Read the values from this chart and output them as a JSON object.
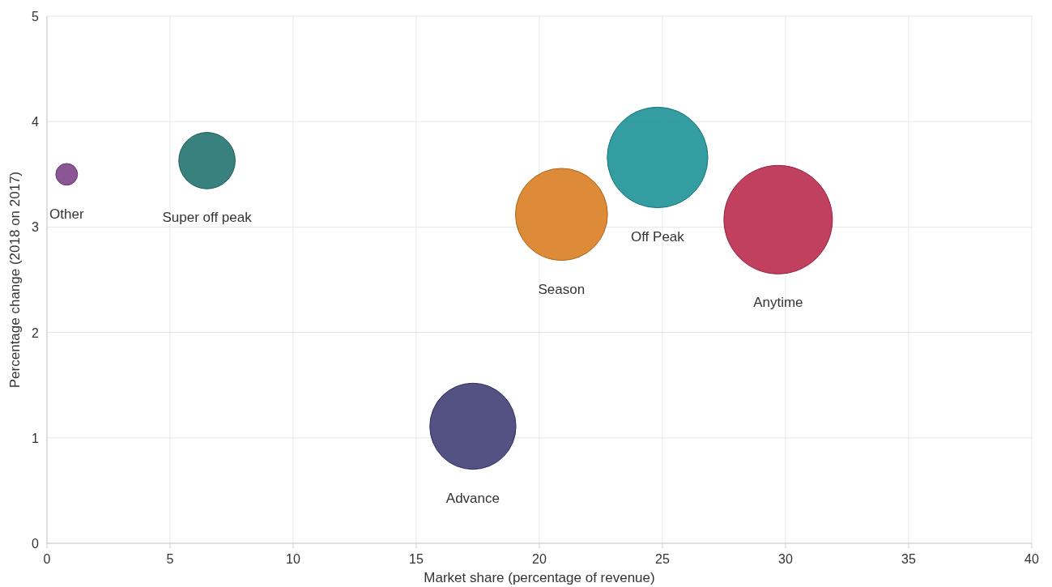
{
  "chart_data": {
    "type": "bubble",
    "xlabel": "Market share (percentage of revenue)",
    "ylabel": "Percentage change (2018 on 2017)",
    "xlim": [
      0,
      40
    ],
    "xticks": [
      0,
      5,
      10,
      15,
      20,
      25,
      30,
      35,
      40
    ],
    "ylim": [
      0,
      5
    ],
    "yticks": [
      0,
      1,
      2,
      3,
      4,
      5
    ],
    "grid": true,
    "legend": false,
    "series": [
      {
        "name": "Other",
        "color": "#7b3f86",
        "x": [
          0.8
        ],
        "values": [
          3.5
        ],
        "sizes": [
          0.04
        ]
      },
      {
        "name": "Super off peak",
        "color": "#1d6f6c",
        "x": [
          6.5
        ],
        "values": [
          3.63
        ],
        "sizes": [
          0.27
        ]
      },
      {
        "name": "Season",
        "color": "#d97b1e",
        "x": [
          20.9
        ],
        "values": [
          3.12
        ],
        "sizes": [
          0.72
        ]
      },
      {
        "name": "Off Peak",
        "color": "#178f95",
        "x": [
          24.8
        ],
        "values": [
          3.66
        ],
        "sizes": [
          0.86
        ]
      },
      {
        "name": "Anytime",
        "color": "#b8264a",
        "x": [
          29.7
        ],
        "values": [
          3.07
        ],
        "sizes": [
          1
        ]
      },
      {
        "name": "Advance",
        "color": "#3b3a72",
        "x": [
          17.3
        ],
        "values": [
          1.11
        ],
        "sizes": [
          0.63
        ]
      }
    ]
  }
}
